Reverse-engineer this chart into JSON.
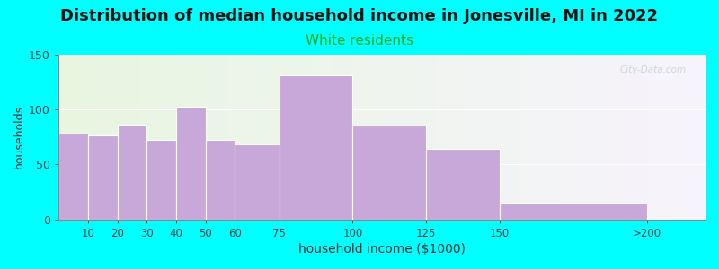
{
  "title": "Distribution of median household income in Jonesville, MI in 2022",
  "subtitle": "White residents",
  "xlabel": "household income ($1000)",
  "ylabel": "households",
  "bin_edges": [
    0,
    10,
    20,
    30,
    40,
    50,
    60,
    75,
    100,
    125,
    150,
    200,
    220
  ],
  "tick_positions": [
    10,
    20,
    30,
    40,
    50,
    60,
    75,
    100,
    125,
    150,
    200
  ],
  "tick_labels": [
    "10",
    "20",
    "30",
    "40",
    "50",
    "60",
    "75",
    "100",
    "125",
    "150",
    ">200"
  ],
  "values": [
    78,
    76,
    86,
    72,
    102,
    72,
    68,
    131,
    85,
    64,
    15
  ],
  "bar_color": "#C8A8D8",
  "bar_edge_color": "#ffffff",
  "title_fontsize": 13,
  "subtitle_fontsize": 11,
  "subtitle_color": "#22AA22",
  "xlabel_fontsize": 10,
  "ylabel_fontsize": 9,
  "background_color": "#00FFFF",
  "ylim": [
    0,
    150
  ],
  "yticks": [
    0,
    50,
    100,
    150
  ],
  "watermark": "City-Data.com",
  "plot_xlim": [
    0,
    220
  ]
}
